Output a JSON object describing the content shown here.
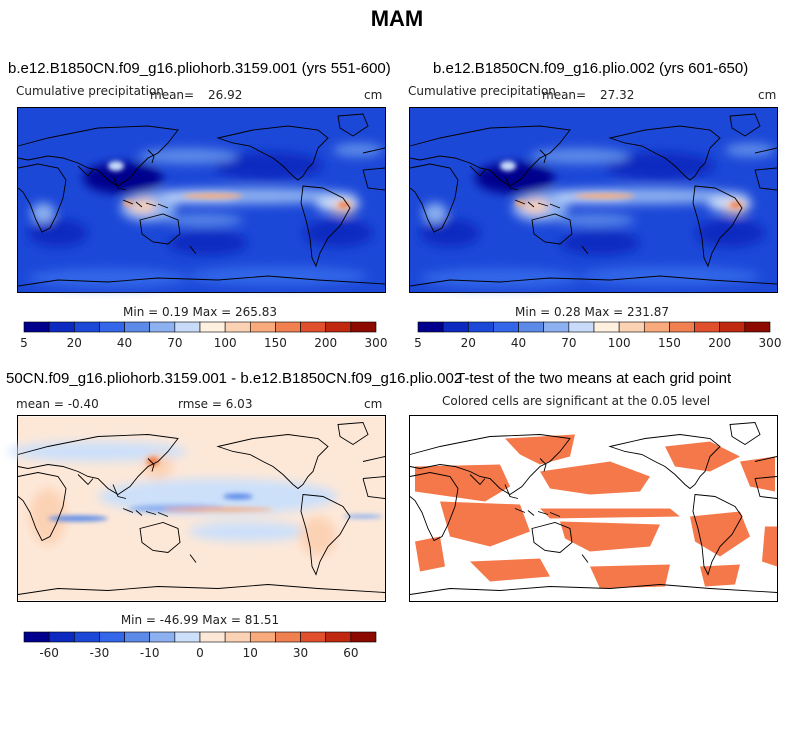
{
  "page": {
    "title": "MAM"
  },
  "panels": [
    {
      "title": "b.e12.B1850CN.f09_g16.pliohorb.3159.001 (yrs 551-600)",
      "var_label": "Cumulative precipitation",
      "mean_label": "mean=",
      "mean_value": "26.92",
      "units": "cm",
      "stats": "Min =    0.19 Max = 265.83"
    },
    {
      "title": "b.e12.B1850CN.f09_g16.plio.002 (yrs 601-650)",
      "var_label": "Cumulative precipitation",
      "mean_label": "mean=",
      "mean_value": "27.32",
      "units": "cm",
      "stats": "Min =    0.28 Max = 231.87"
    },
    {
      "title": "50CN.f09_g16.pliohorb.3159.001 - b.e12.B1850CN.f09_g16.plio.002",
      "mean_text": "mean =   -0.40",
      "rmse_text": "rmse =    6.03",
      "units": "cm",
      "stats": "Min = -46.99 Max =  81.51"
    },
    {
      "title": "T-test of the two means at each grid point",
      "subtitle": "Colored cells are significant at the 0.05 level"
    }
  ],
  "chart_data": [
    {
      "type": "heatmap",
      "title": "b.e12.B1850CN.f09_g16.pliohorb.3159.001 (yrs 551-600)",
      "subtitle": "Cumulative precipitation",
      "mean": 26.92,
      "min": 0.19,
      "max": 265.83,
      "units": "cm",
      "colorbar": {
        "tick_labels": [
          "5",
          "20",
          "40",
          "70",
          "100",
          "150",
          "200",
          "300"
        ],
        "colors": [
          "#00008c",
          "#0c2ac0",
          "#1c48d8",
          "#3366e8",
          "#5c8ae8",
          "#8cb0f0",
          "#c8dcfa",
          "#fff0e0",
          "#fcd2b4",
          "#f8aa7c",
          "#f08050",
          "#e0502c",
          "#c02810",
          "#8c0a00"
        ]
      }
    },
    {
      "type": "heatmap",
      "title": "b.e12.B1850CN.f09_g16.plio.002 (yrs 601-650)",
      "subtitle": "Cumulative precipitation",
      "mean": 27.32,
      "min": 0.28,
      "max": 231.87,
      "units": "cm",
      "colorbar": {
        "tick_labels": [
          "5",
          "20",
          "40",
          "70",
          "100",
          "150",
          "200",
          "300"
        ],
        "colors": [
          "#00008c",
          "#0c2ac0",
          "#1c48d8",
          "#3366e8",
          "#5c8ae8",
          "#8cb0f0",
          "#c8dcfa",
          "#fff0e0",
          "#fcd2b4",
          "#f8aa7c",
          "#f08050",
          "#e0502c",
          "#c02810",
          "#8c0a00"
        ]
      }
    },
    {
      "type": "heatmap",
      "title": "50CN.f09_g16.pliohorb.3159.001 - b.e12.B1850CN.f09_g16.plio.002",
      "mean": -0.4,
      "rmse": 6.03,
      "min": -46.99,
      "max": 81.51,
      "units": "cm",
      "colorbar": {
        "tick_labels": [
          "-60",
          "-30",
          "-10",
          "0",
          "10",
          "30",
          "60"
        ],
        "colors": [
          "#00008c",
          "#0c2ac0",
          "#1c48d8",
          "#3366e8",
          "#5c8ae8",
          "#8cb0f0",
          "#cce0fa",
          "#fde8d8",
          "#fcd2b4",
          "#f8aa7c",
          "#f08050",
          "#e0502c",
          "#c02810",
          "#8c0a00"
        ]
      }
    },
    {
      "type": "heatmap",
      "title": "T-test of the two means at each grid point",
      "subtitle": "Colored cells are significant at the 0.05 level",
      "significance_level": 0.05,
      "significant_color": "#f4784a"
    }
  ]
}
